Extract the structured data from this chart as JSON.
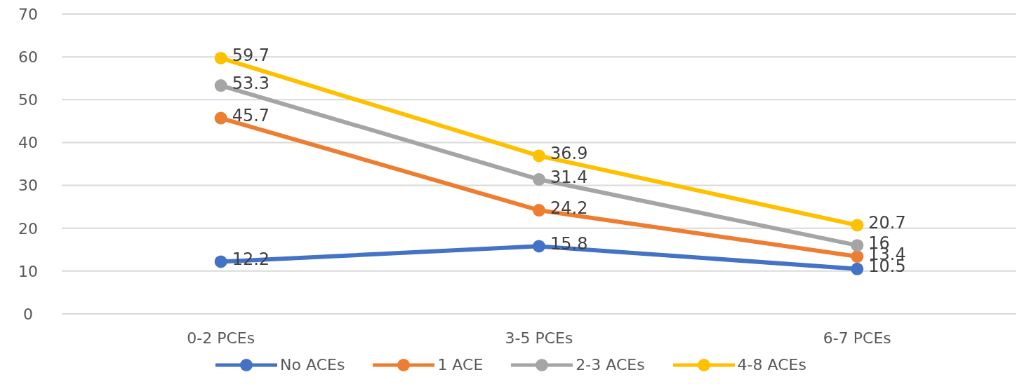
{
  "chart_data": {
    "type": "line",
    "categories": [
      "0-2 PCEs",
      "3-5 PCEs",
      "6-7 PCEs"
    ],
    "series": [
      {
        "name": "No ACEs",
        "color": "#4472c4",
        "values": [
          12.2,
          15.8,
          10.5
        ]
      },
      {
        "name": "1 ACE",
        "color": "#ed7d31",
        "values": [
          45.7,
          24.2,
          13.4
        ]
      },
      {
        "name": "2-3 ACEs",
        "color": "#a5a5a5",
        "values": [
          53.3,
          31.4,
          16
        ]
      },
      {
        "name": "4-8 ACEs",
        "color": "#ffc000",
        "values": [
          59.7,
          36.9,
          20.7
        ]
      }
    ],
    "ylim": [
      0,
      70
    ],
    "yticks": [
      0,
      10,
      20,
      30,
      40,
      50,
      60,
      70
    ],
    "grid": "y",
    "legend": "bottom",
    "marker": "circle",
    "line_style": "solid",
    "data_labels": true
  }
}
